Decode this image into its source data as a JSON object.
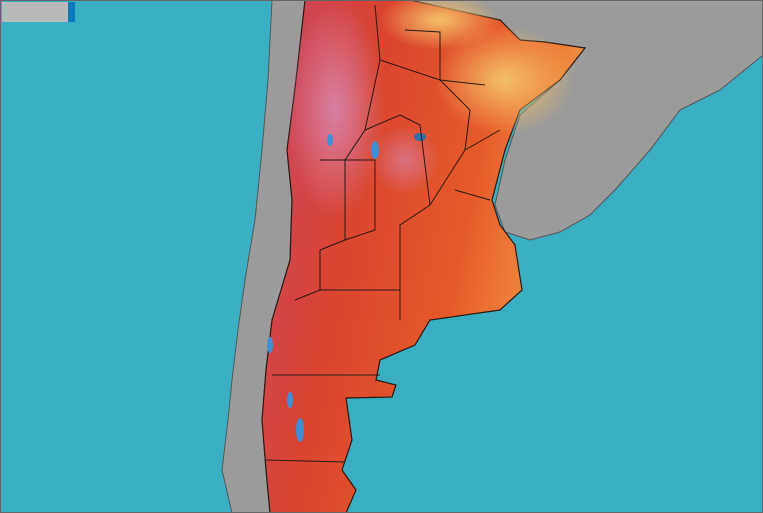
{
  "map": {
    "colors": {
      "ocean": "#3aaec3",
      "neighbor_land": "#9b9b9b",
      "heat_low": "#f4c36a",
      "heat_mid": "#e8532b",
      "heat_high": "#c23a4a",
      "heat_extreme": "#d27a9e",
      "cool_spot": "#3f8fd6",
      "borders": "#2a1a14"
    },
    "overlay_tab": {
      "color": "#b9b9b9",
      "accent": "#0b79b8"
    }
  }
}
